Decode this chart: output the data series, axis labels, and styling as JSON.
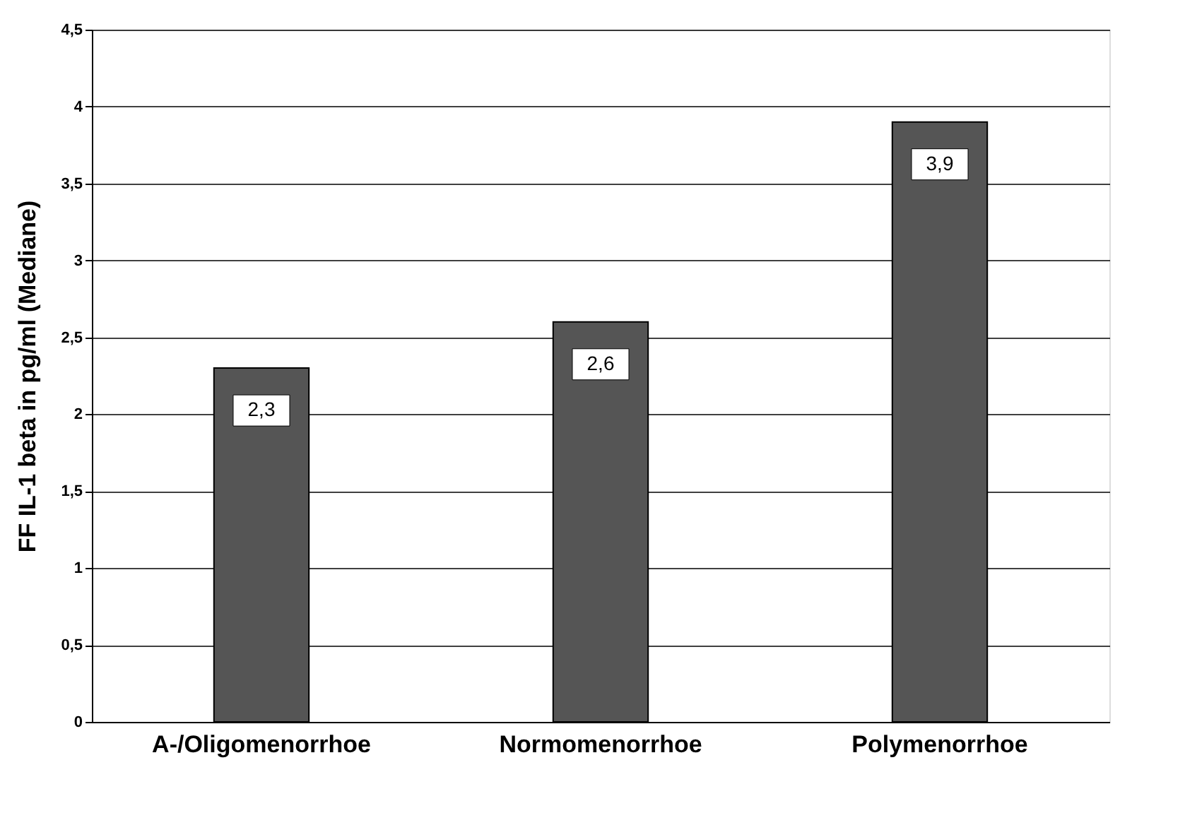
{
  "chart_data": {
    "type": "bar",
    "ylabel": "FF IL-1 beta in pg/ml (Mediane)",
    "categories": [
      "A-/Oligomenorrhoe",
      "Normomenorrhoe",
      "Polymenorrhoe"
    ],
    "values": [
      2.3,
      2.6,
      3.9
    ],
    "color": "#555555",
    "value_labels": [
      "2,3",
      "2,6",
      "3,9"
    ],
    "ylim": [
      0,
      4.5
    ],
    "yticks": [
      0,
      {
        "value": 0.5,
        "label": "0,5"
      },
      1,
      {
        "value": 1.5,
        "label": "1,5"
      },
      2,
      {
        "value": 2.5,
        "label": "2,5"
      },
      3,
      {
        "value": 3.5,
        "label": "3,5"
      },
      4,
      {
        "value": 4.5,
        "label": "4,5"
      }
    ],
    "grid": "y"
  }
}
